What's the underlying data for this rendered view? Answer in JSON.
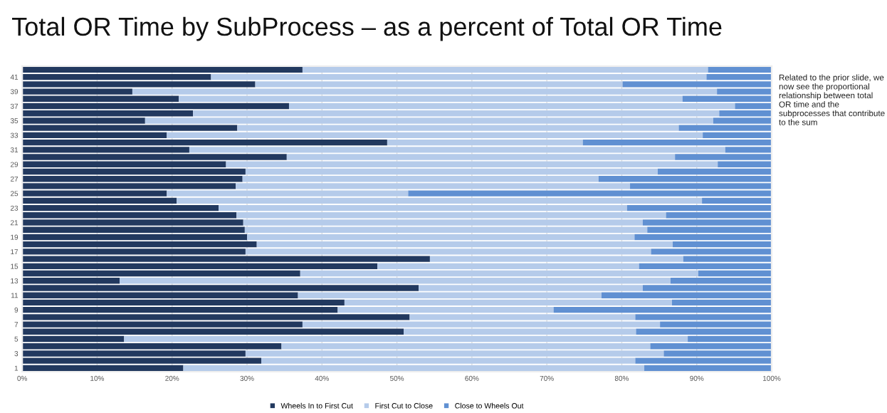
{
  "chart_data": {
    "type": "bar",
    "orientation": "horizontal",
    "stacked": true,
    "title": "Total OR Time by SubProcess – as a percent of Total OR Time",
    "annotations": [
      "Related to the prior slide, we now see the proportional relationship between total OR time and the subprocesses that contribute to the sum"
    ],
    "categories": [
      null,
      "41",
      null,
      "39",
      null,
      "37",
      null,
      "35",
      null,
      "33",
      null,
      "31",
      null,
      "29",
      null,
      "27",
      null,
      "25",
      null,
      "23",
      null,
      "21",
      null,
      "19",
      null,
      "17",
      null,
      "15",
      null,
      "13",
      null,
      "11",
      null,
      "9",
      null,
      "7",
      null,
      "5",
      null,
      "3",
      null,
      "1"
    ],
    "series": [
      {
        "name": "Wheels In to First Cut",
        "color": "#22395f",
        "values": [
          37.4,
          25.2,
          31.1,
          14.7,
          20.9,
          35.6,
          22.8,
          16.4,
          28.7,
          19.3,
          48.7,
          22.3,
          35.3,
          27.2,
          29.8,
          29.4,
          28.5,
          19.3,
          20.6,
          26.2,
          28.6,
          29.5,
          29.7,
          30.0,
          31.3,
          29.8,
          54.4,
          47.4,
          37.1,
          13.0,
          52.9,
          36.8,
          43.0,
          42.1,
          51.7,
          37.4,
          50.9,
          13.6,
          34.6,
          29.8,
          31.9,
          21.5
        ]
      },
      {
        "name": "First Cut to Close",
        "color": "#b5cbea",
        "values": [
          54.1,
          66.1,
          49.0,
          78.0,
          67.2,
          59.5,
          70.2,
          75.8,
          58.9,
          71.5,
          26.1,
          71.5,
          51.8,
          65.6,
          55.0,
          47.5,
          52.6,
          32.2,
          70.1,
          54.5,
          57.3,
          53.3,
          53.7,
          51.7,
          55.5,
          54.1,
          33.8,
          34.9,
          53.1,
          73.5,
          29.9,
          40.5,
          43.7,
          28.8,
          30.1,
          47.7,
          31.0,
          75.2,
          49.2,
          55.8,
          49.9,
          61.5
        ]
      },
      {
        "name": "Close to Wheels Out",
        "color": "#6090d2",
        "values": [
          8.5,
          8.7,
          19.9,
          7.3,
          11.9,
          4.9,
          7.0,
          7.8,
          12.4,
          9.2,
          25.2,
          6.2,
          12.9,
          7.2,
          15.2,
          23.1,
          18.9,
          48.5,
          9.3,
          19.3,
          14.1,
          17.2,
          16.6,
          18.3,
          13.2,
          16.1,
          11.8,
          17.7,
          9.8,
          13.5,
          17.2,
          22.7,
          13.3,
          29.1,
          18.2,
          14.9,
          18.1,
          11.2,
          16.2,
          14.4,
          18.2,
          17.0
        ]
      }
    ],
    "xlim": [
      0,
      100
    ],
    "xticks": [
      {
        "value": 0,
        "label": "0%"
      },
      {
        "value": 10,
        "label": "10%"
      },
      {
        "value": 20,
        "label": "20%"
      },
      {
        "value": 30,
        "label": "30%"
      },
      {
        "value": 40,
        "label": "40%"
      },
      {
        "value": 50,
        "label": "50%"
      },
      {
        "value": 60,
        "label": "60%"
      },
      {
        "value": 70,
        "label": "70%"
      },
      {
        "value": 80,
        "label": "80%"
      },
      {
        "value": 90,
        "label": "90%"
      },
      {
        "value": 100,
        "label": "100%"
      }
    ],
    "grid": "x",
    "legend": "bottom"
  }
}
